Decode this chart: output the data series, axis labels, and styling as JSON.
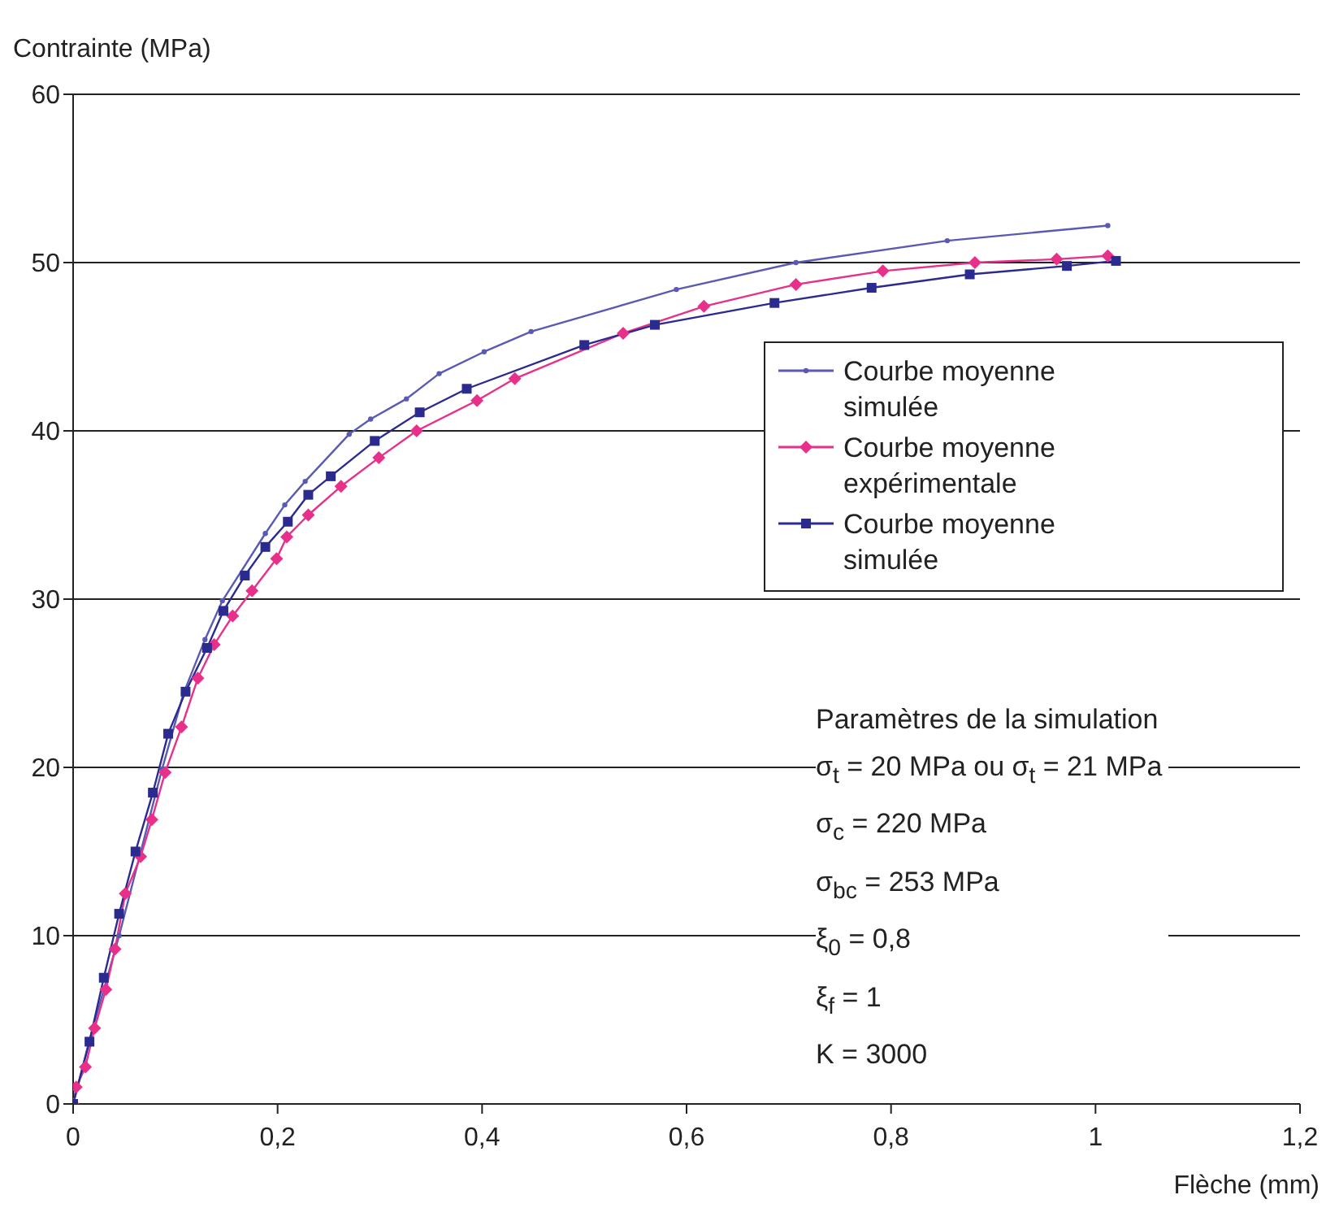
{
  "chart_data": {
    "type": "line",
    "xlabel": "Flèche (mm)",
    "ylabel": "Contrainte (MPa)",
    "xlim": [
      0,
      1.2
    ],
    "xticks": [
      0,
      {
        "value": 0.2,
        "label": "0,2"
      },
      {
        "value": 0.4,
        "label": "0,4"
      },
      {
        "value": 0.6,
        "label": "0,6"
      },
      {
        "value": 0.8,
        "label": "0,8"
      },
      1,
      {
        "value": 1.2,
        "label": "1,2"
      }
    ],
    "ylim": [
      0,
      60
    ],
    "yticks": [
      0,
      10,
      20,
      30,
      40,
      50,
      60
    ],
    "grid": "y",
    "legend": "top right",
    "line_style": "solid",
    "series": [
      {
        "name": "Courbe moyenne simulée",
        "color": "#5a5ab4",
        "marker": "circle",
        "x": [
          0,
          0.016,
          0.045,
          0.087,
          0.108,
          0.129,
          0.146,
          0.188,
          0.207,
          0.227,
          0.27,
          0.291,
          0.326,
          0.358,
          0.402,
          0.448,
          0.59,
          0.707,
          0.855,
          1.012
        ],
        "values": [
          0,
          3.8,
          10.0,
          19.9,
          24.4,
          27.6,
          29.9,
          33.9,
          35.6,
          37.0,
          39.8,
          40.7,
          41.9,
          43.4,
          44.7,
          45.9,
          48.4,
          50.0,
          51.3,
          52.2
        ]
      },
      {
        "name": "Courbe moyenne expérimentale",
        "color": "#e8308a",
        "marker": "diamond",
        "x": [
          0,
          0.003,
          0.012,
          0.021,
          0.032,
          0.041,
          0.051,
          0.066,
          0.077,
          0.09,
          0.106,
          0.122,
          0.138,
          0.156,
          0.175,
          0.199,
          0.209,
          0.23,
          0.262,
          0.299,
          0.336,
          0.395,
          0.432,
          0.538,
          0.617,
          0.707,
          0.792,
          0.882,
          0.962,
          1.012
        ],
        "values": [
          0,
          1.0,
          2.2,
          4.5,
          6.8,
          9.2,
          12.5,
          14.7,
          16.9,
          19.7,
          22.4,
          25.3,
          27.3,
          29.0,
          30.5,
          32.4,
          33.7,
          35.0,
          36.7,
          38.4,
          40.0,
          41.8,
          43.1,
          45.8,
          47.4,
          48.7,
          49.5,
          50.0,
          50.2,
          50.4
        ]
      },
      {
        "name": "Courbe moyenne simulée",
        "color": "#2b2b8f",
        "marker": "square",
        "x": [
          0,
          0.016,
          0.03,
          0.045,
          0.061,
          0.078,
          0.093,
          0.11,
          0.131,
          0.147,
          0.168,
          0.188,
          0.21,
          0.23,
          0.252,
          0.295,
          0.339,
          0.385,
          0.5,
          0.569,
          0.686,
          0.781,
          0.877,
          0.972,
          1.02
        ],
        "values": [
          0,
          3.7,
          7.5,
          11.3,
          15.0,
          18.5,
          22.0,
          24.5,
          27.1,
          29.3,
          31.4,
          33.1,
          34.6,
          36.2,
          37.3,
          39.4,
          41.1,
          42.5,
          45.1,
          46.3,
          47.6,
          48.5,
          49.3,
          49.8,
          50.1
        ]
      }
    ],
    "annotations": [
      "Paramètres de la simulation",
      "σ$_{t}$ = 20 MPa ou  σ$_{t}$ = 21 MPa",
      "σ$_{c}$ = 220 MPa",
      "σ$_{bc}$ = 253 MPa",
      "ξ$_{0}$ = 0,8",
      "ξ$_{f}$ = 1",
      "K = 3000"
    ]
  }
}
